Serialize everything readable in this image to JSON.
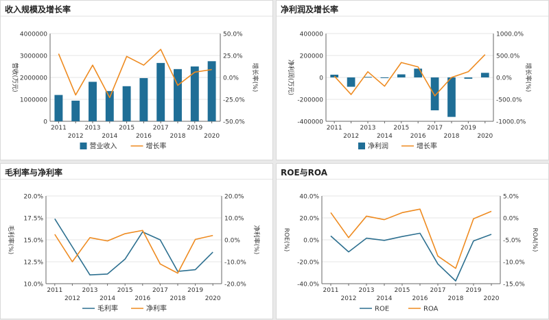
{
  "colors": {
    "bar": "#1f6e96",
    "line_primary": "#2c6f8f",
    "line_secondary": "#ee8a1f",
    "grid": "#e4e4e4",
    "axis": "#666666"
  },
  "chart_data": [
    {
      "title": "收入规模及增长率",
      "type": "bar",
      "categories": [
        "2011",
        "2012",
        "2013",
        "2014",
        "2015",
        "2016",
        "2017",
        "2018",
        "2019",
        "2020"
      ],
      "series": [
        {
          "name": "营业收入",
          "type": "bar",
          "axis": "left",
          "values": [
            1200000,
            940000,
            1800000,
            1380000,
            1600000,
            1970000,
            2660000,
            2380000,
            2500000,
            2740000
          ]
        },
        {
          "name": "增长率",
          "type": "line",
          "axis": "right",
          "values": [
            27,
            -20,
            14,
            -23,
            24,
            14,
            32,
            -9,
            6,
            9
          ]
        }
      ],
      "ylabel": "营收(万元)",
      "ylabel_right": "增长率(%)",
      "ylim": [
        0,
        4000000
      ],
      "ylim_right": [
        -50,
        50
      ],
      "yticks": [
        "0",
        "1000000",
        "2000000",
        "3000000",
        "4000000"
      ],
      "yticks_right": [
        "-50.0%",
        "-25.0%",
        "0.0%",
        "25.0%",
        "50.0%"
      ],
      "legend": "bottom",
      "grid": true
    },
    {
      "title": "净利润及增长率",
      "type": "bar",
      "categories": [
        "2011",
        "2012",
        "2013",
        "2014",
        "2015",
        "2016",
        "2017",
        "2018",
        "2019",
        "2020"
      ],
      "series": [
        {
          "name": "净利润",
          "type": "bar",
          "axis": "left",
          "values": [
            25000,
            -85000,
            5000,
            -5000,
            28000,
            80000,
            -300000,
            -360000,
            -12000,
            42000
          ]
        },
        {
          "name": "增长率",
          "type": "line",
          "axis": "right",
          "values": [
            30,
            -390,
            130,
            -200,
            340,
            240,
            -420,
            0,
            130,
            520
          ]
        }
      ],
      "ylabel": "净利润(万元)",
      "ylabel_right": "增长率(%)",
      "ylim": [
        -400000,
        400000
      ],
      "ylim_right": [
        -1000,
        1000
      ],
      "yticks": [
        "-400000",
        "-200000",
        "0",
        "200000",
        "400000"
      ],
      "yticks_right": [
        "-1000.0%",
        "-500.0%",
        "0.0%",
        "500.0%",
        "1000.0%"
      ],
      "legend": "bottom",
      "grid": true
    },
    {
      "title": "毛利率与净利率",
      "type": "line",
      "categories": [
        "2011",
        "2012",
        "2013",
        "2014",
        "2015",
        "2016",
        "2017",
        "2018",
        "2019",
        "2020"
      ],
      "series": [
        {
          "name": "毛利率",
          "axis": "left",
          "values": [
            17.4,
            14.2,
            11.0,
            11.1,
            12.8,
            15.9,
            15.0,
            11.4,
            11.6,
            13.6
          ]
        },
        {
          "name": "净利率",
          "axis": "right",
          "values": [
            2.5,
            -10.0,
            1.0,
            -0.5,
            2.8,
            4.3,
            -11.0,
            -15.2,
            0.2,
            2.0
          ]
        }
      ],
      "ylabel": "毛利率(%)",
      "ylabel_right": "净利率(%)",
      "ylim": [
        10,
        20
      ],
      "ylim_right": [
        -20,
        20
      ],
      "yticks": [
        "10.0%",
        "12.5%",
        "15.0%",
        "17.5%",
        "20.0%"
      ],
      "yticks_right": [
        "-20.0%",
        "-10.0%",
        "0.0%",
        "10.0%",
        "20.0%"
      ],
      "legend": "bottom",
      "grid": true
    },
    {
      "title": "ROE与ROA",
      "type": "line",
      "categories": [
        "2011",
        "2012",
        "2013",
        "2014",
        "2015",
        "2016",
        "2017",
        "2018",
        "2019",
        "2020"
      ],
      "series": [
        {
          "name": "ROE",
          "axis": "left",
          "values": [
            3.5,
            -11.0,
            1.5,
            -0.5,
            3.0,
            6.0,
            -22.0,
            -37.5,
            -1.0,
            5.0
          ]
        },
        {
          "name": "ROA",
          "axis": "right",
          "values": [
            1.2,
            -4.5,
            0.4,
            -0.4,
            1.2,
            2.0,
            -8.7,
            -11.5,
            -0.2,
            1.5
          ]
        }
      ],
      "ylabel": "ROE(%)",
      "ylabel_right": "ROA(%)",
      "ylim": [
        -40,
        40
      ],
      "ylim_right": [
        -15,
        5
      ],
      "yticks": [
        "-40.0%",
        "-20.0%",
        "0.0%",
        "20.0%",
        "40.0%"
      ],
      "yticks_right": [
        "-15.0%",
        "-10.0%",
        "-5.0%",
        "0.0%",
        "5.0%"
      ],
      "legend": "bottom",
      "grid": true
    }
  ]
}
